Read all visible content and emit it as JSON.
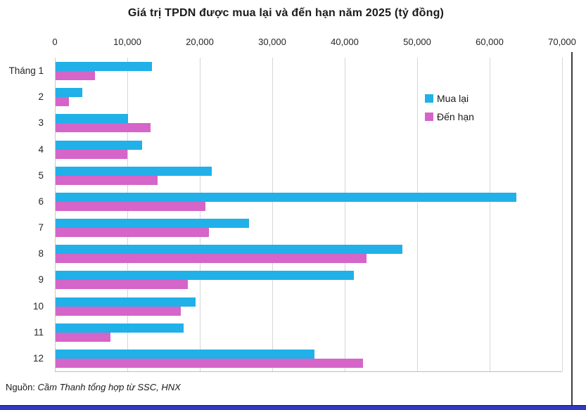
{
  "title": "Giá trị TPDN được mua lại và đến hạn năm 2025 (tỷ đồng)",
  "source": {
    "prefix": "Nguồn: ",
    "text": "Cầm Thanh tổng hợp từ SSC, HNX"
  },
  "legend": {
    "items": [
      {
        "label": "Mua lại",
        "color": "#21B0E8"
      },
      {
        "label": "Đến hạn",
        "color": "#D565C8"
      }
    ],
    "position": "inside-top-right"
  },
  "colors": {
    "buyback": "#21B0E8",
    "maturity": "#D565C8",
    "gridline": "#d6d6d6",
    "bottom_strip": "#3239c0"
  },
  "chart_data": {
    "type": "bar",
    "orientation": "horizontal",
    "title": "Giá trị TPDN được mua lại và đến hạn năm 2025 (tỷ đồng)",
    "categories": [
      "Tháng 1",
      "2",
      "3",
      "4",
      "5",
      "6",
      "7",
      "8",
      "9",
      "10",
      "11",
      "12"
    ],
    "series": [
      {
        "name": "Mua lại",
        "color": "#21B0E8",
        "values": [
          13300,
          3700,
          10000,
          11900,
          21600,
          63600,
          26700,
          47900,
          41200,
          19300,
          17700,
          35700
        ]
      },
      {
        "name": "Đến hạn",
        "color": "#D565C8",
        "values": [
          5400,
          1800,
          13100,
          9900,
          14100,
          20700,
          21200,
          42900,
          18300,
          17300,
          7600,
          42400
        ]
      }
    ],
    "xlabel": "",
    "ylabel": "",
    "x_axis": {
      "position": "top",
      "min": 0,
      "max": 70000,
      "tick_step": 10000,
      "tick_labels": [
        "0",
        "10,000",
        "20,000",
        "30,000",
        "40,000",
        "50,000",
        "60,000",
        "70,000"
      ]
    },
    "grid": true,
    "legend_position": "inside-top-right"
  }
}
